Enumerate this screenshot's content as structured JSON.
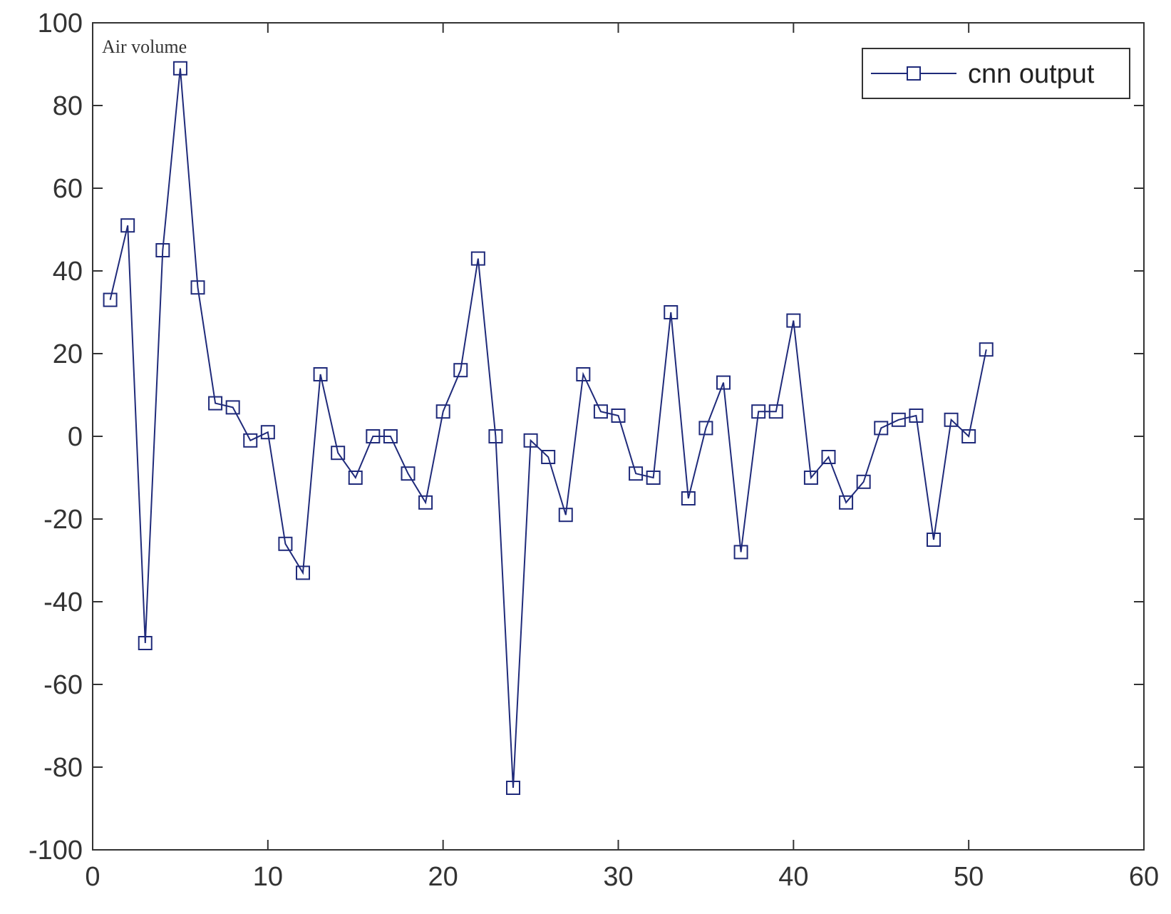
{
  "chart_data": {
    "type": "line",
    "title": "",
    "xlabel": "",
    "ylabel": "",
    "annotation": "Air volume",
    "xlim": [
      0,
      60
    ],
    "ylim": [
      -100,
      100
    ],
    "xticks": [
      0,
      10,
      20,
      30,
      40,
      50,
      60
    ],
    "yticks": [
      -100,
      -80,
      -60,
      -40,
      -20,
      0,
      20,
      40,
      60,
      80,
      100
    ],
    "grid": false,
    "legend_position": "top-right",
    "series": [
      {
        "name": "cnn output",
        "color": "#1f2a7a",
        "marker": "square",
        "x": [
          1,
          2,
          3,
          4,
          5,
          6,
          7,
          8,
          9,
          10,
          11,
          12,
          13,
          14,
          15,
          16,
          17,
          18,
          19,
          20,
          21,
          22,
          23,
          24,
          25,
          26,
          27,
          28,
          29,
          30,
          31,
          32,
          33,
          34,
          35,
          36,
          37,
          38,
          39,
          40,
          41,
          42,
          43,
          44,
          45,
          46,
          47,
          48,
          49,
          50,
          51
        ],
        "y": [
          33,
          51,
          -50,
          45,
          89,
          36,
          8,
          7,
          -1,
          1,
          -26,
          -33,
          15,
          -4,
          -10,
          0,
          0,
          -9,
          -16,
          6,
          16,
          43,
          0,
          -85,
          -1,
          -5,
          -19,
          15,
          6,
          5,
          -9,
          -10,
          30,
          -15,
          2,
          13,
          -28,
          6,
          6,
          28,
          -10,
          -5,
          -16,
          -11,
          2,
          4,
          5,
          -25,
          4,
          0,
          21
        ]
      }
    ]
  }
}
